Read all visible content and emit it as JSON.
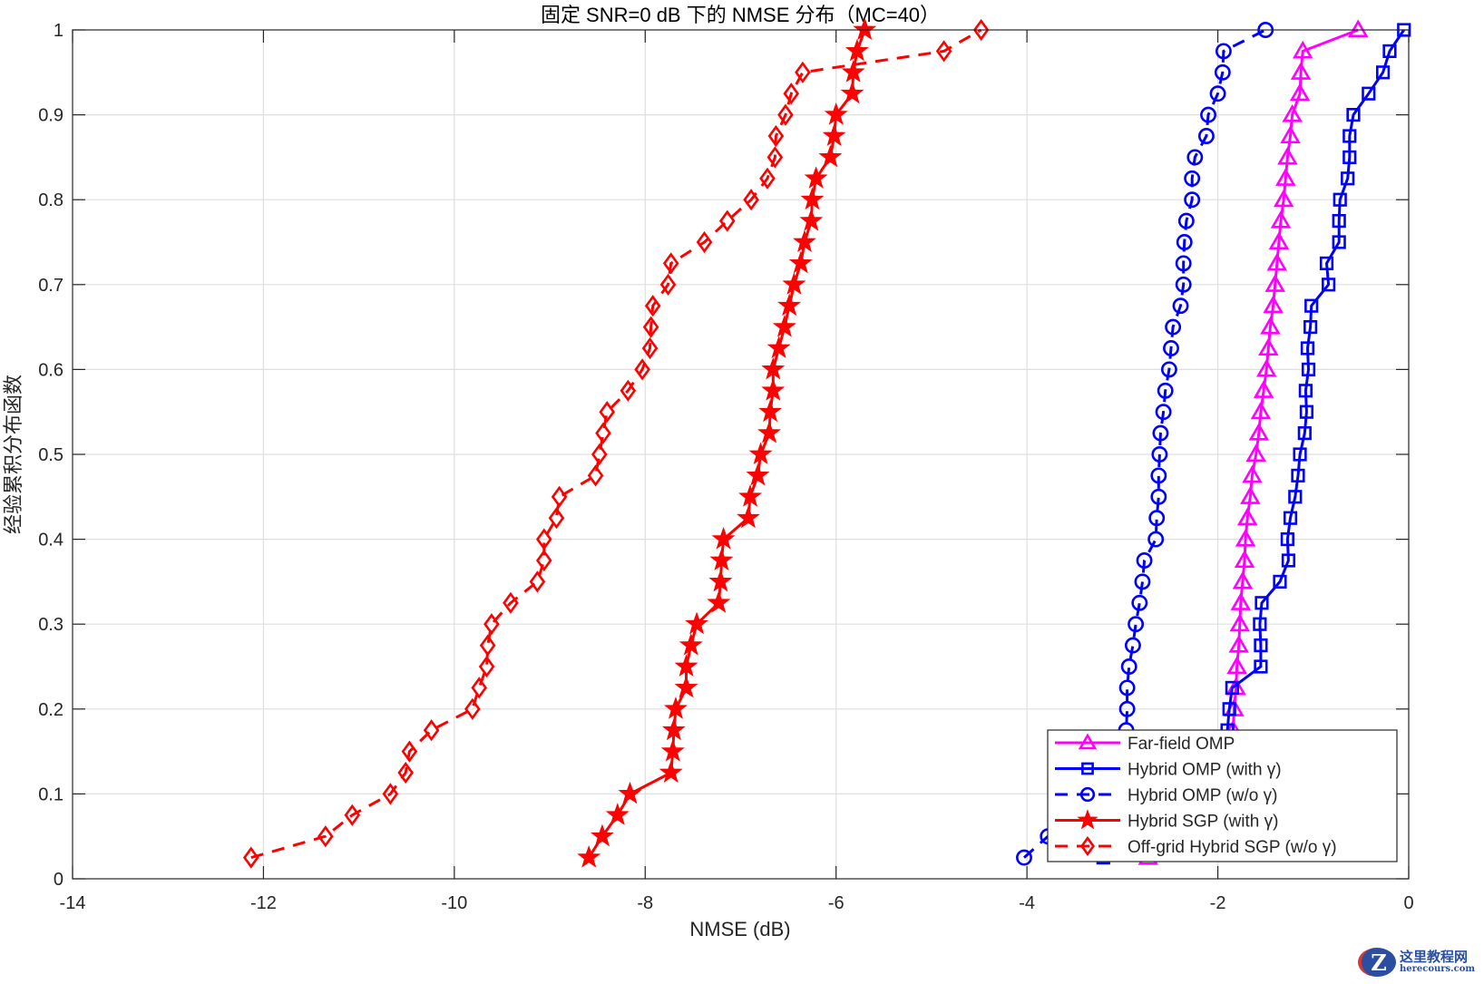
{
  "chart_data": {
    "type": "line",
    "title": "固定 SNR=0 dB 下的 NMSE 分布（MC=40）",
    "xlabel": "NMSE (dB)",
    "ylabel": "经验累积分布函数",
    "xlim": [
      -14,
      0
    ],
    "ylim": [
      0,
      1
    ],
    "xticks": [
      -14,
      -12,
      -10,
      -8,
      -6,
      -4,
      -2,
      0
    ],
    "yticks": [
      0,
      0.1,
      0.2,
      0.3,
      0.4,
      0.5,
      0.6,
      0.7,
      0.8,
      0.9,
      1
    ],
    "grid": true,
    "legend_position": "southeast",
    "y": [
      0.025,
      0.05,
      0.075,
      0.1,
      0.125,
      0.15,
      0.175,
      0.2,
      0.225,
      0.25,
      0.275,
      0.3,
      0.325,
      0.35,
      0.375,
      0.4,
      0.425,
      0.45,
      0.475,
      0.5,
      0.525,
      0.55,
      0.575,
      0.6,
      0.625,
      0.65,
      0.675,
      0.7,
      0.725,
      0.75,
      0.775,
      0.8,
      0.825,
      0.85,
      0.875,
      0.9,
      0.925,
      0.95,
      0.975,
      1.0
    ],
    "series": [
      {
        "name": "Far-field OMP",
        "color": "#ff00ff",
        "linestyle": "solid",
        "marker": "triangle",
        "x": [
          -2.73,
          -1.95,
          -1.92,
          -1.9,
          -1.88,
          -1.86,
          -1.84,
          -1.83,
          -1.81,
          -1.8,
          -1.78,
          -1.77,
          -1.76,
          -1.74,
          -1.72,
          -1.71,
          -1.69,
          -1.66,
          -1.64,
          -1.6,
          -1.57,
          -1.55,
          -1.52,
          -1.49,
          -1.47,
          -1.45,
          -1.42,
          -1.4,
          -1.38,
          -1.36,
          -1.34,
          -1.31,
          -1.29,
          -1.27,
          -1.24,
          -1.22,
          -1.14,
          -1.13,
          -1.11,
          -0.53
        ]
      },
      {
        "name": "Hybrid  OMP  (with  γ)",
        "color": "#0000ff",
        "linestyle": "solid",
        "marker": "square",
        "x": [
          -3.2,
          -2.12,
          -1.99,
          -1.95,
          -1.92,
          -1.91,
          -1.9,
          -1.88,
          -1.85,
          -1.55,
          -1.55,
          -1.56,
          -1.54,
          -1.35,
          -1.26,
          -1.27,
          -1.24,
          -1.19,
          -1.16,
          -1.14,
          -1.09,
          -1.07,
          -1.08,
          -1.05,
          -1.06,
          -1.03,
          -1.02,
          -0.84,
          -0.86,
          -0.73,
          -0.73,
          -0.72,
          -0.64,
          -0.62,
          -0.62,
          -0.58,
          -0.42,
          -0.27,
          -0.2,
          -0.05
        ]
      },
      {
        "name": "Hybrid  OMP  (w/o  γ)",
        "color": "#0000ff",
        "linestyle": "dashed",
        "marker": "circle",
        "x": [
          -4.03,
          -3.78,
          -3.5,
          -3.26,
          -3.12,
          -3.01,
          -2.96,
          -2.95,
          -2.95,
          -2.93,
          -2.89,
          -2.86,
          -2.82,
          -2.79,
          -2.77,
          -2.65,
          -2.64,
          -2.62,
          -2.62,
          -2.61,
          -2.6,
          -2.57,
          -2.55,
          -2.51,
          -2.49,
          -2.47,
          -2.39,
          -2.36,
          -2.36,
          -2.35,
          -2.33,
          -2.27,
          -2.27,
          -2.24,
          -2.12,
          -2.1,
          -2.0,
          -1.95,
          -1.94,
          -1.5
        ]
      },
      {
        "name": "Hybrid  SGP  (with  γ)",
        "color": "#ff0000",
        "linestyle": "solid",
        "marker": "star",
        "x": [
          -8.59,
          -8.45,
          -8.29,
          -8.16,
          -7.73,
          -7.71,
          -7.7,
          -7.68,
          -7.57,
          -7.57,
          -7.52,
          -7.46,
          -7.23,
          -7.21,
          -7.2,
          -7.18,
          -6.92,
          -6.9,
          -6.82,
          -6.79,
          -6.7,
          -6.69,
          -6.66,
          -6.66,
          -6.6,
          -6.54,
          -6.49,
          -6.44,
          -6.37,
          -6.33,
          -6.26,
          -6.25,
          -6.21,
          -6.06,
          -6.02,
          -6.0,
          -5.83,
          -5.82,
          -5.78,
          -5.7
        ]
      },
      {
        "name": "Off-grid  Hybrid  SGP  (w/o  γ)",
        "color": "#ff0000",
        "linestyle": "dashed",
        "marker": "diamond",
        "x": [
          -12.13,
          -11.35,
          -11.07,
          -10.67,
          -10.51,
          -10.47,
          -10.24,
          -9.81,
          -9.74,
          -9.66,
          -9.65,
          -9.61,
          -9.41,
          -9.13,
          -9.06,
          -9.06,
          -8.93,
          -8.9,
          -8.52,
          -8.48,
          -8.44,
          -8.4,
          -8.18,
          -8.03,
          -7.95,
          -7.94,
          -7.92,
          -7.76,
          -7.73,
          -7.38,
          -7.14,
          -6.89,
          -6.72,
          -6.64,
          -6.63,
          -6.53,
          -6.47,
          -6.35,
          -4.87,
          -4.48
        ]
      }
    ]
  },
  "watermark": {
    "logo_letter": "Z",
    "text_cn": "这里教程网",
    "text_en": "herecours.com"
  }
}
